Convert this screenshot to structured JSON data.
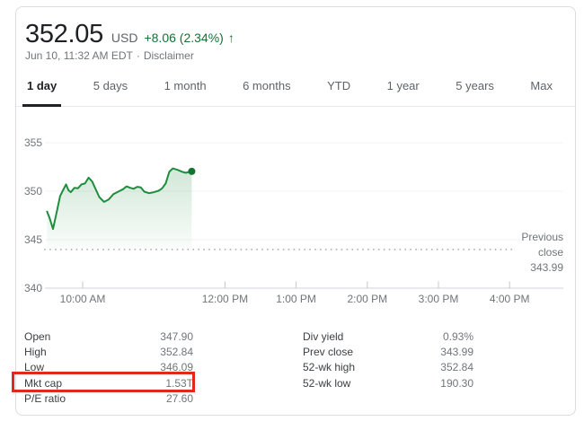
{
  "header": {
    "price": "352.05",
    "currency": "USD",
    "change": "+8.06 (2.34%)",
    "arrow": "↑",
    "timestamp": "Jun 10, 11:32 AM EDT",
    "separator": "·",
    "disclaimer_label": "Disclaimer"
  },
  "tabs": [
    {
      "label": "1 day",
      "active": true
    },
    {
      "label": "5 days",
      "active": false
    },
    {
      "label": "1 month",
      "active": false
    },
    {
      "label": "6 months",
      "active": false
    },
    {
      "label": "YTD",
      "active": false
    },
    {
      "label": "1 year",
      "active": false
    },
    {
      "label": "5 years",
      "active": false
    },
    {
      "label": "Max",
      "active": false
    }
  ],
  "chart_data": {
    "type": "area",
    "grid": true,
    "y_ticks": [
      355,
      350,
      345,
      340
    ],
    "ylim": [
      339.5,
      356.5
    ],
    "x_ticks": [
      {
        "hour": 10,
        "label": "10:00 AM"
      },
      {
        "hour": 12,
        "label": "12:00 PM"
      },
      {
        "hour": 13,
        "label": "1:00 PM"
      },
      {
        "hour": 14,
        "label": "2:00 PM"
      },
      {
        "hour": 15,
        "label": "3:00 PM"
      },
      {
        "hour": 16,
        "label": "4:00 PM"
      }
    ],
    "x_start_hour": 9.5,
    "previous_close": {
      "value": 343.99,
      "annotation_lines": [
        "Previous",
        "close",
        "343.99"
      ]
    },
    "line_color": "#1e8e3e",
    "dot_color": "#137333",
    "series": [
      {
        "name": "price",
        "x_minutes_after_open": [
          0,
          2,
          5,
          8,
          11,
          13,
          16,
          18,
          20,
          23,
          26,
          29,
          32,
          35,
          38,
          41,
          44,
          48,
          52,
          56,
          60,
          64,
          67,
          70,
          73,
          76,
          79,
          82,
          86,
          90,
          94,
          97,
          100,
          103,
          106,
          110,
          114,
          117,
          120,
          122
        ],
        "values": [
          347.9,
          347.3,
          346.1,
          347.8,
          349.5,
          350.0,
          350.7,
          350.1,
          349.9,
          350.35,
          350.3,
          350.7,
          350.8,
          351.4,
          351.0,
          350.2,
          349.4,
          348.9,
          349.15,
          349.7,
          349.95,
          350.2,
          350.5,
          350.35,
          350.25,
          350.45,
          350.4,
          349.95,
          349.8,
          349.9,
          350.05,
          350.3,
          350.8,
          352.0,
          352.35,
          352.2,
          352.0,
          351.9,
          352.0,
          352.05
        ]
      }
    ]
  },
  "stats": {
    "left": [
      {
        "label": "Open",
        "value": "347.90"
      },
      {
        "label": "High",
        "value": "352.84"
      },
      {
        "label": "Low",
        "value": "346.09"
      },
      {
        "label": "Mkt cap",
        "value": "1.53T"
      },
      {
        "label": "P/E ratio",
        "value": "27.60"
      }
    ],
    "right": [
      {
        "label": "Div yield",
        "value": "0.93%"
      },
      {
        "label": "Prev close",
        "value": "343.99"
      },
      {
        "label": "52-wk high",
        "value": "352.84"
      },
      {
        "label": "52-wk low",
        "value": "190.30"
      }
    ]
  },
  "colors": {
    "price_text": "#202124",
    "secondary_text": "#5f6368",
    "muted_text": "#70757a",
    "accent_green": "#137333",
    "line_green": "#1e8e3e",
    "grid_line": "#f1f3f4",
    "axis_line": "#dadce0",
    "dotted_line": "#9aa0a6",
    "card_border": "#dadce0",
    "highlight_red": "#e2271c",
    "active_tab": "#202124"
  }
}
